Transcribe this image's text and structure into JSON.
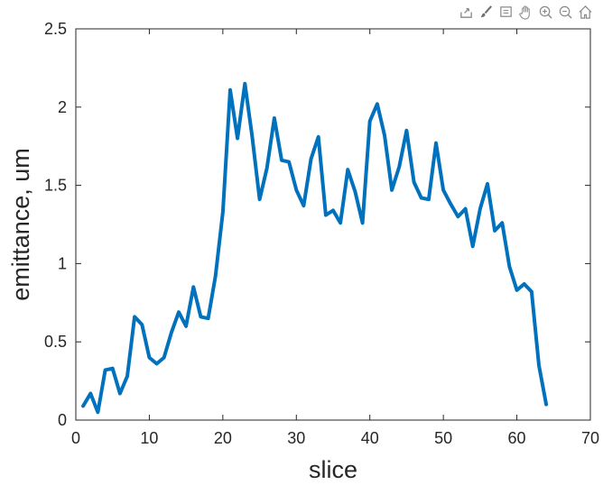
{
  "toolbar": {
    "icons": [
      "export-icon",
      "brush-icon",
      "datatip-icon",
      "pan-icon",
      "zoom-in-icon",
      "zoom-out-icon",
      "home-icon"
    ]
  },
  "colors": {
    "line": "#0072BD",
    "axis": "#262626"
  },
  "chart_data": {
    "type": "line",
    "xlabel": "slice",
    "ylabel": "emittance, um",
    "xlim": [
      0,
      70
    ],
    "ylim": [
      0,
      2.5
    ],
    "xticks": [
      "0",
      "10",
      "20",
      "30",
      "40",
      "50",
      "60",
      "70"
    ],
    "yticks": [
      "0",
      "0.5",
      "1",
      "1.5",
      "2",
      "2.5"
    ],
    "grid": false,
    "series": [
      {
        "x": [
          1,
          2,
          3,
          4,
          5,
          6,
          7,
          8,
          9,
          10,
          11,
          12,
          13,
          14,
          15,
          16,
          17,
          18,
          19,
          20,
          21,
          22,
          23,
          24,
          25,
          26,
          27,
          28,
          29,
          30,
          31,
          32,
          33,
          34,
          35,
          36,
          37,
          38,
          39,
          40,
          41,
          42,
          43,
          44,
          45,
          46,
          47,
          48,
          49,
          50,
          51,
          52,
          53,
          54,
          55,
          56,
          57,
          58,
          59,
          60,
          61,
          62,
          63,
          64
        ],
        "values": [
          0.09,
          0.17,
          0.05,
          0.32,
          0.33,
          0.17,
          0.28,
          0.66,
          0.61,
          0.4,
          0.36,
          0.4,
          0.56,
          0.69,
          0.6,
          0.85,
          0.66,
          0.65,
          0.92,
          1.33,
          2.11,
          1.8,
          2.15,
          1.81,
          1.41,
          1.61,
          1.93,
          1.66,
          1.65,
          1.47,
          1.37,
          1.67,
          1.81,
          1.31,
          1.34,
          1.26,
          1.6,
          1.46,
          1.26,
          1.91,
          2.02,
          1.82,
          1.47,
          1.62,
          1.85,
          1.52,
          1.42,
          1.41,
          1.77,
          1.47,
          1.38,
          1.3,
          1.35,
          1.11,
          1.35,
          1.51,
          1.21,
          1.26,
          0.98,
          0.83,
          0.87,
          0.82,
          0.35,
          0.1
        ]
      }
    ]
  }
}
